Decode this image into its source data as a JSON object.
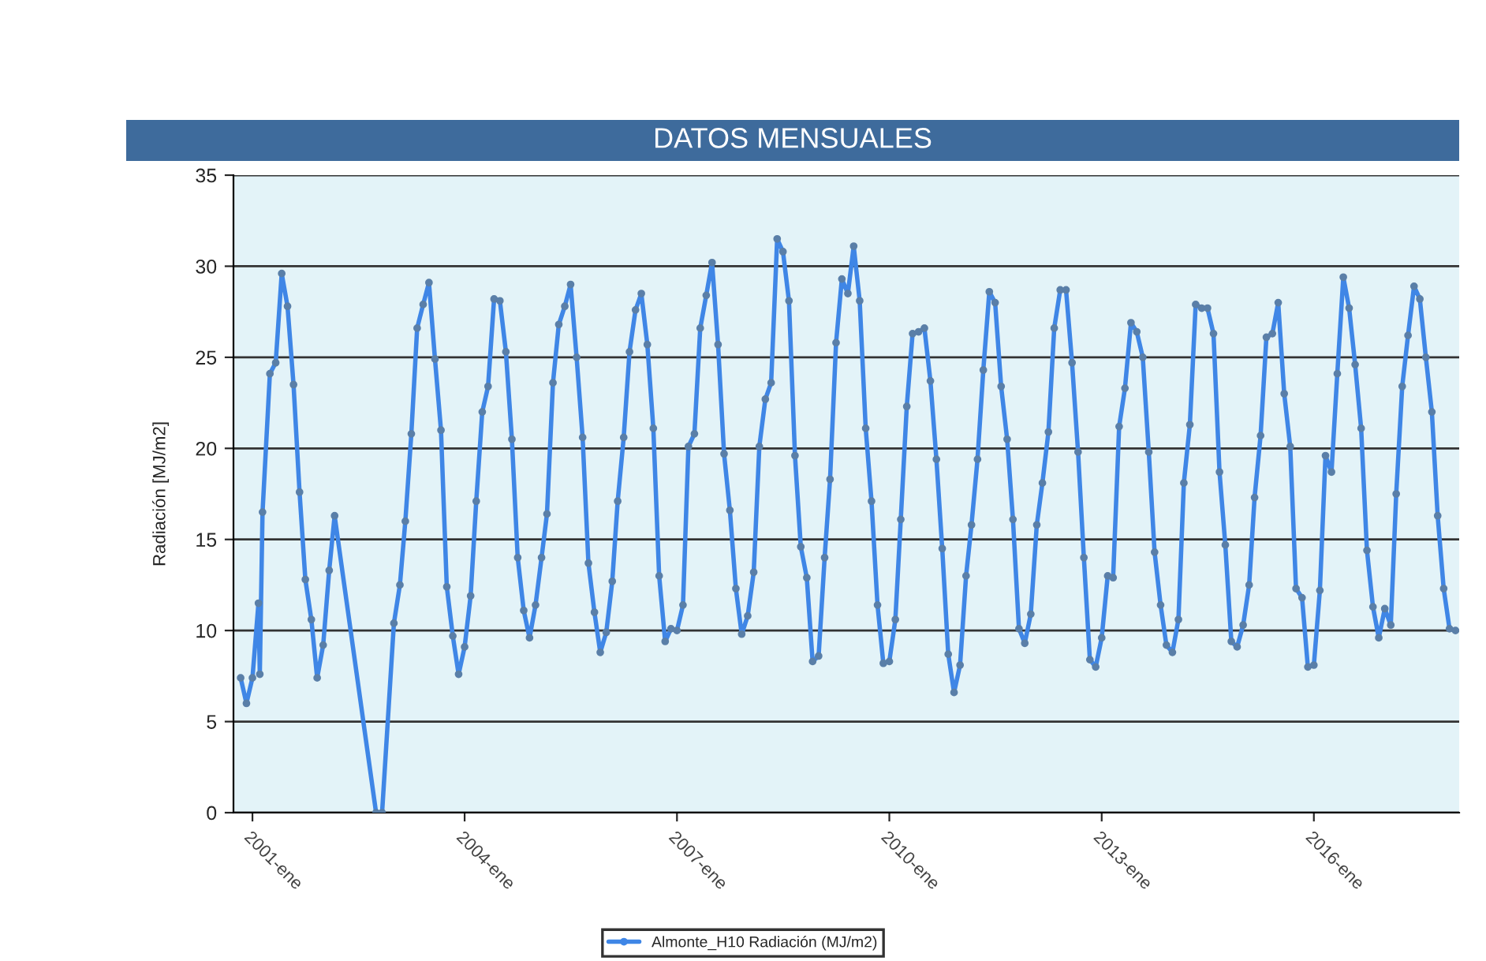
{
  "chart_data": {
    "type": "line",
    "title": "DATOS MENSUALES",
    "ylabel": "Radiación [MJ/m2]",
    "x": [
      "2000-11",
      "2000-12",
      "2001-01",
      "2001-02",
      "2001-02-08",
      "2001-02-22",
      "2001-04",
      "2001-05",
      "2001-06",
      "2001-07",
      "2001-08",
      "2001-09",
      "2001-10",
      "2001-11",
      "2001-12",
      "2002-01",
      "2002-02",
      "2002-03",
      "2002-10",
      "2002-11",
      "2003-01",
      "2003-02",
      "2003-03",
      "2003-04",
      "2003-05",
      "2003-06",
      "2003-07",
      "2003-08",
      "2003-09",
      "2003-10",
      "2003-11",
      "2003-12",
      "2004-01",
      "2004-02",
      "2004-03",
      "2004-04",
      "2004-05",
      "2004-06",
      "2004-07",
      "2004-08",
      "2004-09",
      "2004-10",
      "2004-11",
      "2004-12",
      "2005-01",
      "2005-02",
      "2005-03",
      "2005-04",
      "2005-05",
      "2005-06",
      "2005-07",
      "2005-08",
      "2005-09",
      "2005-10",
      "2005-11",
      "2005-12",
      "2006-01",
      "2006-02",
      "2006-03",
      "2006-04",
      "2006-05",
      "2006-06",
      "2006-07",
      "2006-08",
      "2006-09",
      "2006-10",
      "2006-11",
      "2006-12",
      "2007-01",
      "2007-02",
      "2007-03",
      "2007-04",
      "2007-05",
      "2007-06",
      "2007-07",
      "2007-08",
      "2007-09",
      "2007-10",
      "2007-11",
      "2007-12",
      "2008-01",
      "2008-02",
      "2008-03",
      "2008-04",
      "2008-05",
      "2008-06",
      "2008-07",
      "2008-08",
      "2008-09",
      "2008-10",
      "2008-11",
      "2008-12",
      "2009-01",
      "2009-02",
      "2009-03",
      "2009-04",
      "2009-05",
      "2009-06",
      "2009-07",
      "2009-08",
      "2009-09",
      "2009-10",
      "2009-11",
      "2009-12",
      "2010-01",
      "2010-02",
      "2010-03",
      "2010-04",
      "2010-05",
      "2010-06",
      "2010-07",
      "2010-08",
      "2010-09",
      "2010-10",
      "2010-11",
      "2010-12",
      "2011-01",
      "2011-02",
      "2011-03",
      "2011-04",
      "2011-05",
      "2011-06",
      "2011-07",
      "2011-08",
      "2011-09",
      "2011-10",
      "2011-11",
      "2011-12",
      "2012-01",
      "2012-02",
      "2012-03",
      "2012-04",
      "2012-05",
      "2012-06",
      "2012-07",
      "2012-08",
      "2012-09",
      "2012-10",
      "2012-11",
      "2012-12",
      "2013-01",
      "2013-02",
      "2013-03",
      "2013-04",
      "2013-05",
      "2013-06",
      "2013-07",
      "2013-08",
      "2013-09",
      "2013-10",
      "2013-11",
      "2013-12",
      "2014-01",
      "2014-02",
      "2014-03",
      "2014-04",
      "2014-05",
      "2014-06",
      "2014-07",
      "2014-08",
      "2014-09",
      "2014-10",
      "2014-11",
      "2014-12",
      "2015-01",
      "2015-02",
      "2015-03",
      "2015-04",
      "2015-05",
      "2015-06",
      "2015-07",
      "2015-08",
      "2015-09",
      "2015-10",
      "2015-11",
      "2015-12",
      "2016-01",
      "2016-02",
      "2016-03",
      "2016-04",
      "2016-05",
      "2016-06",
      "2016-07",
      "2016-08",
      "2016-09",
      "2016-10",
      "2016-11",
      "2016-12",
      "2017-01",
      "2017-02",
      "2017-03",
      "2017-04",
      "2017-05",
      "2017-06",
      "2017-07",
      "2017-08",
      "2017-09",
      "2017-10",
      "2017-11",
      "2017-12",
      "2018-01"
    ],
    "series": [
      {
        "name": "Almonte_H10 Radiación (MJ/m2)",
        "color": "#3f86e6",
        "values": [
          7.4,
          6.0,
          7.4,
          11.5,
          7.6,
          16.5,
          24.1,
          24.7,
          29.6,
          27.8,
          23.5,
          17.6,
          12.8,
          10.6,
          7.4,
          9.2,
          13.3,
          16.3,
          0,
          0,
          10.4,
          12.5,
          16.0,
          20.8,
          26.6,
          27.9,
          29.1,
          24.9,
          21.0,
          12.4,
          9.7,
          7.6,
          9.1,
          11.9,
          17.1,
          22.0,
          23.4,
          28.2,
          28.1,
          25.3,
          20.5,
          14.0,
          11.1,
          9.6,
          11.4,
          14.0,
          16.4,
          23.6,
          26.8,
          27.8,
          29.0,
          25.0,
          20.6,
          13.7,
          11.0,
          8.8,
          9.9,
          12.7,
          17.1,
          20.6,
          25.3,
          27.6,
          28.5,
          25.7,
          21.1,
          13.0,
          9.4,
          10.1,
          10.0,
          11.4,
          20.1,
          20.8,
          26.6,
          28.4,
          30.2,
          25.7,
          19.7,
          16.6,
          12.3,
          9.8,
          10.8,
          13.2,
          20.1,
          22.7,
          23.6,
          31.5,
          30.8,
          28.1,
          19.6,
          14.6,
          12.9,
          8.3,
          8.6,
          14.0,
          18.3,
          25.8,
          29.3,
          28.5,
          31.1,
          28.1,
          21.1,
          17.1,
          11.4,
          8.2,
          8.3,
          10.6,
          16.1,
          22.3,
          26.3,
          26.4,
          26.6,
          23.7,
          19.4,
          14.5,
          8.7,
          6.6,
          8.1,
          13.0,
          15.8,
          19.4,
          24.3,
          28.6,
          28.0,
          23.4,
          20.5,
          16.1,
          10.1,
          9.3,
          10.9,
          15.8,
          18.1,
          20.9,
          26.6,
          28.7,
          28.7,
          24.7,
          19.8,
          14.0,
          8.4,
          8.0,
          9.6,
          13.0,
          12.9,
          21.2,
          23.3,
          26.9,
          26.4,
          25.0,
          19.8,
          14.3,
          11.4,
          9.2,
          8.8,
          10.6,
          18.1,
          21.3,
          27.9,
          27.7,
          27.7,
          26.3,
          18.7,
          14.7,
          9.4,
          9.1,
          10.3,
          12.5,
          17.3,
          20.7,
          26.1,
          26.3,
          28.0,
          23.0,
          20.1,
          12.3,
          11.8,
          8.0,
          8.1,
          12.2,
          19.6,
          18.7,
          24.1,
          29.4,
          27.7,
          24.6,
          21.1,
          14.4,
          11.3,
          9.6,
          11.2,
          10.3,
          17.5,
          23.4,
          26.2,
          28.9,
          28.2,
          25.0,
          22.0,
          16.3,
          12.3,
          10.1,
          10.0
        ]
      }
    ],
    "xlim": [
      "2000-09-25",
      "2018-01-20"
    ],
    "xticks": [
      {
        "value": "2001-01",
        "label": "2001-ene"
      },
      {
        "value": "2004-01",
        "label": "2004-ene"
      },
      {
        "value": "2007-01",
        "label": "2007-ene"
      },
      {
        "value": "2010-01",
        "label": "2010-ene"
      },
      {
        "value": "2013-01",
        "label": "2013-ene"
      },
      {
        "value": "2016-01",
        "label": "2016-ene"
      }
    ],
    "ylim": [
      0,
      35
    ],
    "yticks": [
      0,
      5,
      10,
      15,
      20,
      25,
      30,
      35
    ],
    "grid": "y",
    "legend": "bottom",
    "marker": "circle",
    "line_style": "solid"
  }
}
